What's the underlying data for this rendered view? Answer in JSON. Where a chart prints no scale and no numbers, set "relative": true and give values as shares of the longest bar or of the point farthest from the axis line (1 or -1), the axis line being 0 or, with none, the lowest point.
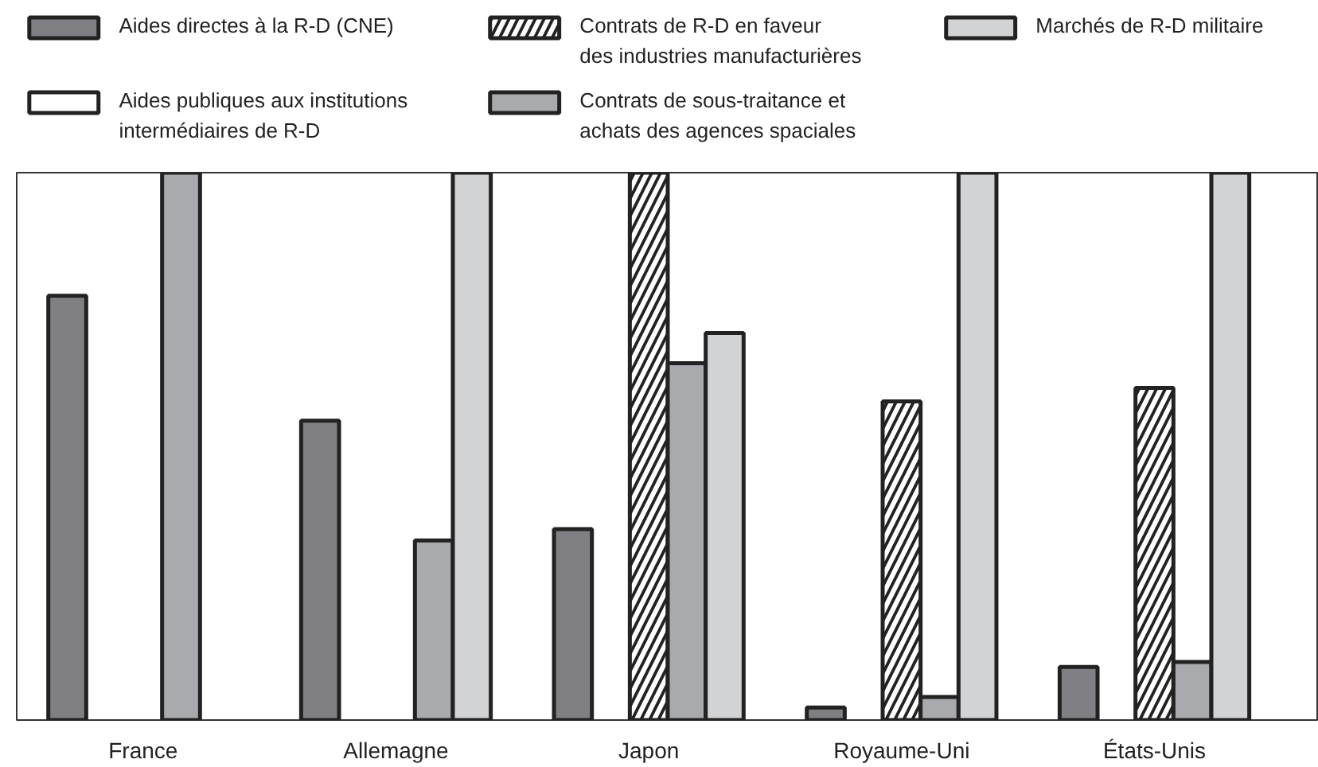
{
  "chart_data": {
    "type": "bar",
    "relative": true,
    "legend": "top",
    "grid": false,
    "categories": [
      "France",
      "Allemagne",
      "Japon",
      "Royaume-Uni",
      "États-Unis"
    ],
    "series": [
      {
        "name": "Aides directes à la R-D (CNE)",
        "color": "#808084",
        "values": [
          0.775,
          0.547,
          0.349,
          0.023,
          0.097
        ]
      },
      {
        "name": "Aides publiques aux institutions\nintermédiaires de R-D",
        "color": "#ffffff",
        "values": [
          null,
          null,
          null,
          null,
          null
        ]
      },
      {
        "name": "Contrats de R-D en faveur\ndes industries manufacturières",
        "color": "#222222",
        "values": [
          null,
          null,
          1.0,
          0.582,
          0.607
        ]
      },
      {
        "name": "Contrats de sous-traitance et\nachats des agences spaciales",
        "color": "#a9aaad",
        "values": [
          1.0,
          0.328,
          0.652,
          0.042,
          0.106
        ]
      },
      {
        "name": "Marchés de R-D militaire",
        "color": "#d2d3d5",
        "values": [
          null,
          1.0,
          0.707,
          1.0,
          1.0
        ]
      }
    ]
  }
}
